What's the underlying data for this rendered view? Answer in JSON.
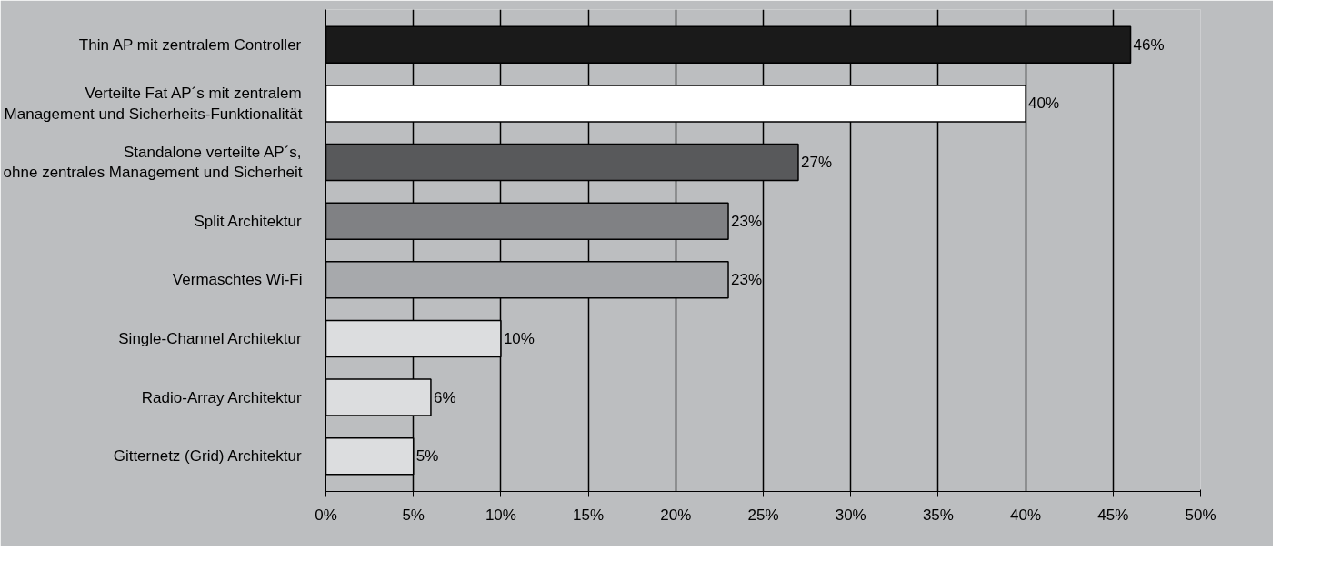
{
  "chart_data": {
    "type": "bar",
    "orientation": "horizontal",
    "categories": [
      "Thin AP mit zentralem Controller",
      "Verteilte Fat AP´s mit zentralem\nManagement und Sicherheits-Funktionalität",
      "Standalone verteilte AP´s,\nohne zentrales Management und Sicherheit",
      "Split Architektur",
      "Vermaschtes Wi-Fi",
      "Single-Channel Architektur",
      "Radio-Array Architektur",
      "Gitternetz (Grid) Architektur"
    ],
    "values": [
      46,
      40,
      27,
      23,
      23,
      10,
      6,
      5
    ],
    "value_labels": [
      "46%",
      "40%",
      "27%",
      "23%",
      "23%",
      "10%",
      "6%",
      "5%"
    ],
    "colors": [
      "#1a1a1a",
      "#ffffff",
      "#58595b",
      "#808184",
      "#a7a9ac",
      "#dcdddf",
      "#dcdddf",
      "#dcdddf"
    ],
    "xlim": [
      0,
      50
    ],
    "xticks": [
      {
        "value": 0,
        "label": "0%"
      },
      {
        "value": 5,
        "label": "5%"
      },
      {
        "value": 10,
        "label": "10%"
      },
      {
        "value": 15,
        "label": "15%"
      },
      {
        "value": 20,
        "label": "20%"
      },
      {
        "value": 25,
        "label": "25%"
      },
      {
        "value": 30,
        "label": "30%"
      },
      {
        "value": 35,
        "label": "35%"
      },
      {
        "value": 40,
        "label": "40%"
      },
      {
        "value": 45,
        "label": "45%"
      },
      {
        "value": 50,
        "label": "50%"
      }
    ],
    "grid": "x"
  }
}
